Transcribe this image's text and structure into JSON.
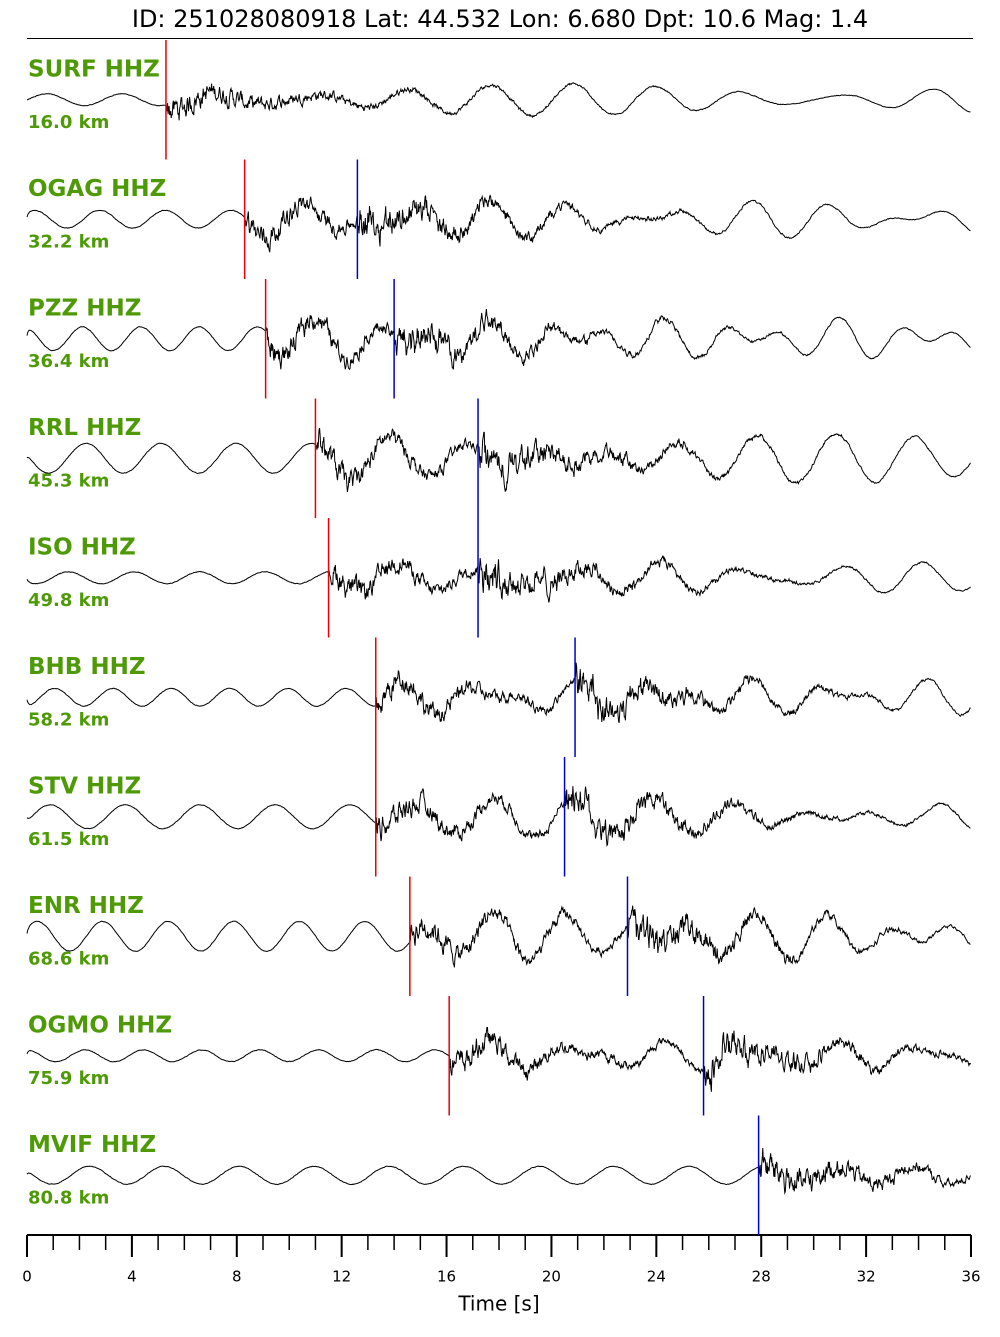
{
  "chart_data": {
    "type": "seismogram",
    "title": "ID: 251028080918 Lat:  44.532 Lon:   6.680 Dpt:    10.6 Mag:   1.4",
    "xlabel": "Time [s]",
    "xlim": [
      0,
      36
    ],
    "xticks": [
      0,
      4,
      8,
      12,
      16,
      20,
      24,
      28,
      32,
      36
    ],
    "p_color": "#e8000b",
    "s_color": "#0000cc",
    "label_color": "#4e9a06",
    "traces": [
      {
        "name": "SURF HHZ",
        "distance": "16.0 km",
        "p_pick": 5.3,
        "s_pick": null
      },
      {
        "name": "OGAG HHZ",
        "distance": "32.2 km",
        "p_pick": 8.3,
        "s_pick": 12.6
      },
      {
        "name": "PZZ HHZ",
        "distance": "36.4 km",
        "p_pick": 9.1,
        "s_pick": 14.0
      },
      {
        "name": "RRL HHZ",
        "distance": "45.3 km",
        "p_pick": 11.0,
        "s_pick": 17.2
      },
      {
        "name": "ISO HHZ",
        "distance": "49.8 km",
        "p_pick": 11.5,
        "s_pick": 17.2
      },
      {
        "name": "BHB HHZ",
        "distance": "58.2 km",
        "p_pick": 13.3,
        "s_pick": 20.9
      },
      {
        "name": "STV HHZ",
        "distance": "61.5 km",
        "p_pick": 13.3,
        "s_pick": 20.5
      },
      {
        "name": "ENR HHZ",
        "distance": "68.6 km",
        "p_pick": 14.6,
        "s_pick": 22.9
      },
      {
        "name": "OGMO HHZ",
        "distance": "75.9 km",
        "p_pick": 16.1,
        "s_pick": 25.8
      },
      {
        "name": "MVIF HHZ",
        "distance": "80.8 km",
        "p_pick": null,
        "s_pick": 27.9
      }
    ]
  }
}
